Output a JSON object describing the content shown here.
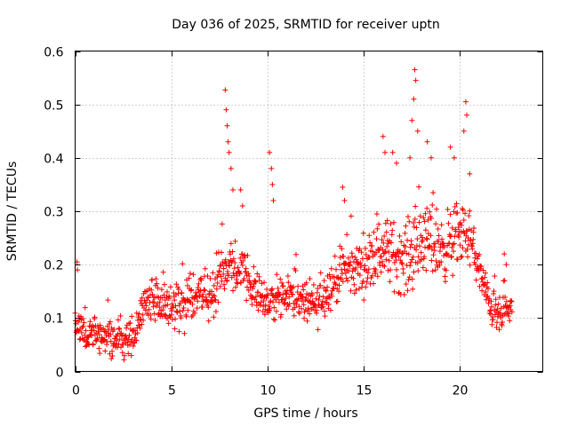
{
  "chart_data": {
    "type": "scatter",
    "title": "Day 036 of 2025, SRMTID for receiver uptn",
    "xlabel": "GPS time / hours",
    "ylabel": "SRMTID / TECUs",
    "xlim": [
      0,
      24.3
    ],
    "ylim": [
      0,
      0.6
    ],
    "xticks": [
      0,
      5,
      10,
      15,
      20
    ],
    "yticks": [
      0,
      0.1,
      0.2,
      0.3,
      0.4,
      0.5,
      0.6
    ],
    "xtick_labels": [
      "0",
      "5",
      "10",
      "15",
      "20"
    ],
    "ytick_labels": [
      "0",
      "0.1",
      "0.2",
      "0.3",
      "0.4",
      "0.5",
      "0.6"
    ],
    "grid": true,
    "marker": "+",
    "color": "#ff0000",
    "series": [
      {
        "name": "SRMTID",
        "x_start": 0.0,
        "x_end": 22.7,
        "step_hours": 0.02,
        "trend": {
          "x": [
            0,
            0.5,
            1,
            1.5,
            2,
            2.5,
            3,
            3.3,
            3.6,
            4,
            4.5,
            5,
            5.5,
            6,
            6.5,
            7,
            7.5,
            8,
            8.5,
            9,
            9.5,
            10,
            10.5,
            11,
            11.5,
            12,
            12.5,
            13,
            13.5,
            14,
            14.5,
            15,
            15.5,
            16,
            16.5,
            17,
            17.5,
            18,
            18.5,
            19,
            19.5,
            20,
            20.5,
            21,
            21.5,
            22,
            22.7
          ],
          "y": [
            0.08,
            0.07,
            0.07,
            0.065,
            0.06,
            0.06,
            0.07,
            0.09,
            0.13,
            0.14,
            0.13,
            0.12,
            0.13,
            0.14,
            0.15,
            0.14,
            0.17,
            0.2,
            0.19,
            0.17,
            0.15,
            0.13,
            0.14,
            0.15,
            0.14,
            0.13,
            0.12,
            0.15,
            0.17,
            0.19,
            0.19,
            0.2,
            0.21,
            0.23,
            0.22,
            0.21,
            0.22,
            0.24,
            0.25,
            0.23,
            0.24,
            0.26,
            0.25,
            0.19,
            0.13,
            0.1,
            0.12
          ]
        },
        "spread": {
          "x": [
            0,
            3.5,
            7.4,
            9,
            10,
            11,
            14,
            16,
            18,
            20,
            21,
            22.7
          ],
          "y": [
            0.04,
            0.05,
            0.07,
            0.06,
            0.05,
            0.05,
            0.06,
            0.08,
            0.09,
            0.08,
            0.05,
            0.04
          ]
        },
        "peaks": [
          {
            "x": 0.1,
            "y": 0.205
          },
          {
            "x": 0.12,
            "y": 0.19
          },
          {
            "x": 7.8,
            "y": 0.527
          },
          {
            "x": 7.85,
            "y": 0.49
          },
          {
            "x": 7.9,
            "y": 0.46
          },
          {
            "x": 7.95,
            "y": 0.43
          },
          {
            "x": 8.0,
            "y": 0.41
          },
          {
            "x": 8.1,
            "y": 0.38
          },
          {
            "x": 8.2,
            "y": 0.34
          },
          {
            "x": 8.6,
            "y": 0.34
          },
          {
            "x": 8.7,
            "y": 0.31
          },
          {
            "x": 10.1,
            "y": 0.41
          },
          {
            "x": 10.2,
            "y": 0.38
          },
          {
            "x": 10.25,
            "y": 0.35
          },
          {
            "x": 10.3,
            "y": 0.32
          },
          {
            "x": 13.9,
            "y": 0.345
          },
          {
            "x": 14.0,
            "y": 0.32
          },
          {
            "x": 16.0,
            "y": 0.44
          },
          {
            "x": 16.1,
            "y": 0.41
          },
          {
            "x": 16.5,
            "y": 0.41
          },
          {
            "x": 16.7,
            "y": 0.39
          },
          {
            "x": 17.4,
            "y": 0.4
          },
          {
            "x": 17.5,
            "y": 0.47
          },
          {
            "x": 17.6,
            "y": 0.51
          },
          {
            "x": 17.65,
            "y": 0.565
          },
          {
            "x": 17.7,
            "y": 0.545
          },
          {
            "x": 17.8,
            "y": 0.45
          },
          {
            "x": 18.3,
            "y": 0.43
          },
          {
            "x": 18.5,
            "y": 0.4
          },
          {
            "x": 19.5,
            "y": 0.42
          },
          {
            "x": 19.7,
            "y": 0.4
          },
          {
            "x": 20.2,
            "y": 0.45
          },
          {
            "x": 20.3,
            "y": 0.505
          },
          {
            "x": 20.35,
            "y": 0.48
          },
          {
            "x": 20.5,
            "y": 0.37
          },
          {
            "x": 22.3,
            "y": 0.22
          },
          {
            "x": 22.4,
            "y": 0.2
          }
        ]
      }
    ]
  }
}
